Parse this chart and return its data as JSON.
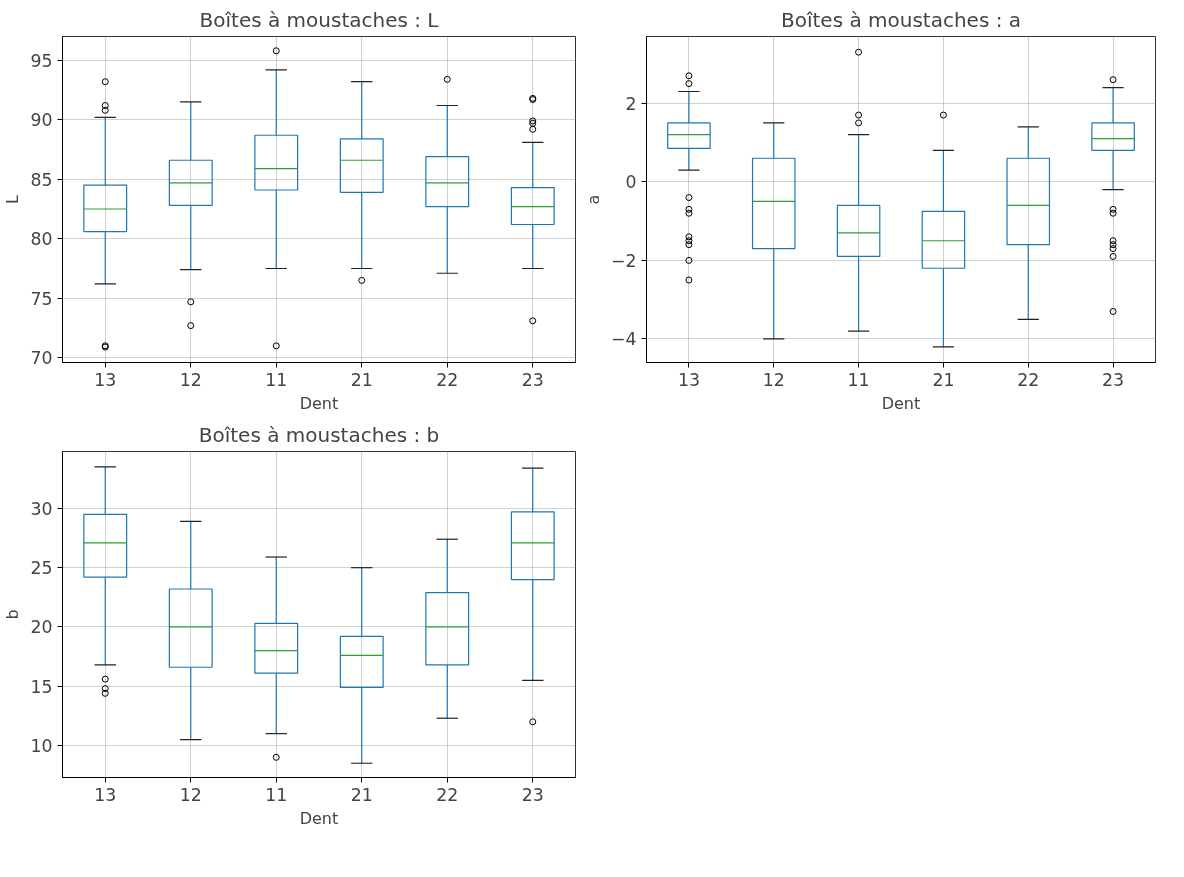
{
  "chart_data": [
    {
      "type": "box",
      "title": "Boîtes à moustaches : L",
      "xlabel": "Dent",
      "ylabel": "L",
      "categories": [
        "13",
        "12",
        "11",
        "21",
        "22",
        "23"
      ],
      "ylim": [
        69.6,
        97
      ],
      "yticks": [
        70,
        75,
        80,
        85,
        90,
        95
      ],
      "grid": true,
      "series": [
        {
          "color": "#1f77b4",
          "boxes": [
            {
              "low": 76.2,
              "q1": 80.6,
              "median": 82.5,
              "q3": 84.5,
              "high": 90.2,
              "outliers": [
                93.2,
                91.2,
                90.8,
                71.0,
                70.9
              ]
            },
            {
              "low": 77.4,
              "q1": 82.8,
              "median": 84.7,
              "q3": 86.6,
              "high": 91.5,
              "outliers": [
                74.7,
                72.7
              ]
            },
            {
              "low": 77.5,
              "q1": 84.1,
              "median": 85.9,
              "q3": 88.7,
              "high": 94.2,
              "outliers": [
                95.8,
                71.0
              ]
            },
            {
              "low": 77.5,
              "q1": 83.9,
              "median": 86.6,
              "q3": 88.4,
              "high": 93.2,
              "outliers": [
                76.5
              ]
            },
            {
              "low": 77.1,
              "q1": 82.7,
              "median": 84.7,
              "q3": 86.9,
              "high": 91.2,
              "outliers": [
                93.4
              ]
            },
            {
              "low": 77.5,
              "q1": 81.2,
              "median": 82.7,
              "q3": 84.3,
              "high": 88.1,
              "outliers": [
                91.8,
                91.7,
                89.9,
                89.7,
                89.2,
                73.1
              ]
            }
          ]
        }
      ]
    },
    {
      "type": "box",
      "title": "Boîtes à moustaches : a",
      "xlabel": "Dent",
      "ylabel": "a",
      "categories": [
        "13",
        "12",
        "11",
        "21",
        "22",
        "23"
      ],
      "ylim": [
        -4.6,
        3.7
      ],
      "yticks": [
        {
          "value": -4,
          "label": "−4"
        },
        {
          "value": -2,
          "label": "−2"
        },
        0,
        2
      ],
      "grid": true,
      "series": [
        {
          "color": "#1f77b4",
          "boxes": [
            {
              "low": 0.3,
              "q1": 0.85,
              "median": 1.2,
              "q3": 1.5,
              "high": 2.3,
              "outliers": [
                2.7,
                2.5,
                -0.4,
                -0.7,
                -0.8,
                -1.4,
                -1.5,
                -1.6,
                -2.0,
                -2.5
              ]
            },
            {
              "low": -4.0,
              "q1": -1.7,
              "median": -0.5,
              "q3": 0.6,
              "high": 1.5
            },
            {
              "low": -3.8,
              "q1": -1.9,
              "median": -1.3,
              "q3": -0.6,
              "high": 1.2,
              "outliers": [
                3.3,
                1.7,
                1.5
              ]
            },
            {
              "low": -4.2,
              "q1": -2.2,
              "median": -1.5,
              "q3": -0.75,
              "high": 0.8,
              "outliers": [
                1.7
              ]
            },
            {
              "low": -3.5,
              "q1": -1.6,
              "median": -0.6,
              "q3": 0.6,
              "high": 1.4
            },
            {
              "low": -0.2,
              "q1": 0.8,
              "median": 1.1,
              "q3": 1.5,
              "high": 2.4,
              "outliers": [
                2.6,
                -0.7,
                -0.8,
                -1.5,
                -1.6,
                -1.7,
                -1.9,
                -3.3
              ]
            }
          ]
        }
      ]
    },
    {
      "type": "box",
      "title": "Boîtes à moustaches : b",
      "xlabel": "Dent",
      "ylabel": "b",
      "categories": [
        "13",
        "12",
        "11",
        "21",
        "22",
        "23"
      ],
      "ylim": [
        7.3,
        34.8
      ],
      "yticks": [
        10,
        15,
        20,
        25,
        30
      ],
      "grid": true,
      "series": [
        {
          "color": "#1f77b4",
          "boxes": [
            {
              "low": 16.8,
              "q1": 24.2,
              "median": 27.1,
              "q3": 29.5,
              "high": 33.5,
              "outliers": [
                15.6,
                14.8,
                14.4
              ]
            },
            {
              "low": 10.5,
              "q1": 16.6,
              "median": 20.0,
              "q3": 23.2,
              "high": 28.9
            },
            {
              "low": 11.0,
              "q1": 16.1,
              "median": 18.0,
              "q3": 20.3,
              "high": 25.9,
              "outliers": [
                9.0
              ]
            },
            {
              "low": 8.5,
              "q1": 14.9,
              "median": 17.6,
              "q3": 19.2,
              "high": 25.0
            },
            {
              "low": 12.3,
              "q1": 16.8,
              "median": 20.0,
              "q3": 22.9,
              "high": 27.4
            },
            {
              "low": 15.5,
              "q1": 24.0,
              "median": 27.1,
              "q3": 29.7,
              "high": 33.4,
              "outliers": [
                12.0
              ]
            }
          ]
        }
      ]
    }
  ]
}
